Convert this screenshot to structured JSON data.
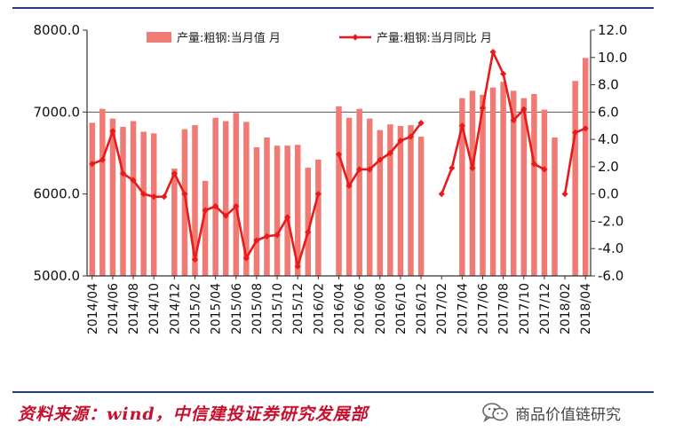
{
  "chart_data": {
    "type": "bar+line",
    "categories": [
      "2014/04",
      "2014/05",
      "2014/06",
      "2014/07",
      "2014/08",
      "2014/09",
      "2014/10",
      "2014/11",
      "2014/12",
      "2015/01",
      "2015/02",
      "2015/03",
      "2015/04",
      "2015/05",
      "2015/06",
      "2015/07",
      "2015/08",
      "2015/09",
      "2015/10",
      "2015/11",
      "2015/12",
      "2016/01",
      "2016/02",
      "2016/03",
      "2016/04",
      "2016/05",
      "2016/06",
      "2016/07",
      "2016/08",
      "2016/09",
      "2016/10",
      "2016/11",
      "2016/12",
      "2017/01",
      "2017/02",
      "2017/03",
      "2017/04",
      "2017/05",
      "2017/06",
      "2017/07",
      "2017/08",
      "2017/09",
      "2017/10",
      "2017/11",
      "2017/12",
      "2018/01",
      "2018/02",
      "2018/03",
      "2018/04"
    ],
    "x_tick_labels": [
      "2014/04",
      "2014/06",
      "2014/08",
      "2014/10",
      "2014/12",
      "2015/02",
      "2015/04",
      "2015/06",
      "2015/08",
      "2015/10",
      "2015/12",
      "2016/02",
      "2016/04",
      "2016/06",
      "2016/08",
      "2016/10",
      "2016/12",
      "2017/02",
      "2017/04",
      "2017/06",
      "2017/08",
      "2017/10",
      "2017/12",
      "2018/02",
      "2018/04"
    ],
    "series": [
      {
        "name": "产量:粗钢:当月值 月",
        "kind": "bar",
        "axis": "left",
        "color": "#ef7b74",
        "values": [
          6870,
          7040,
          6920,
          6820,
          6890,
          6760,
          6740,
          null,
          6310,
          6790,
          6840,
          6160,
          6930,
          6890,
          6990,
          6880,
          6570,
          6690,
          6590,
          6590,
          6600,
          6320,
          6420,
          null,
          7070,
          6930,
          7040,
          6920,
          6780,
          6850,
          6830,
          6840,
          6700,
          null,
          null,
          null,
          7170,
          7260,
          7210,
          7300,
          7370,
          7260,
          7170,
          7220,
          7030,
          6690,
          null,
          7380,
          7660
        ]
      },
      {
        "name": "产量:粗钢:当月同比 月",
        "kind": "line",
        "axis": "right",
        "color": "#e81a1a",
        "values": [
          2.2,
          2.5,
          4.6,
          1.5,
          1.0,
          0.0,
          -0.2,
          -0.2,
          1.5,
          0.0,
          -4.8,
          -1.2,
          -0.9,
          -1.6,
          -0.9,
          -4.7,
          -3.4,
          -3.1,
          -3.0,
          -1.7,
          -5.3,
          -2.8,
          0.0,
          null,
          2.9,
          0.6,
          1.8,
          1.8,
          2.5,
          3.0,
          3.9,
          4.2,
          5.2,
          null,
          0.0,
          1.9,
          5.0,
          1.9,
          6.3,
          10.4,
          8.8,
          5.4,
          6.2,
          2.2,
          1.8,
          null,
          0.0,
          4.5,
          4.8
        ]
      }
    ],
    "left_axis": {
      "min": 5000,
      "max": 8000,
      "step": 1000,
      "tick_labels": [
        "5000.0",
        "6000.0",
        "7000.0",
        "8000.0"
      ]
    },
    "right_axis": {
      "min": -6,
      "max": 12,
      "step": 2,
      "tick_labels": [
        "-6.0",
        "-4.0",
        "-2.0",
        "0.0",
        "2.0",
        "4.0",
        "6.0",
        "8.0",
        "10.0",
        "12.0"
      ]
    },
    "legend_placement": "top-center",
    "grid": "horizontal at 7000",
    "colors": {
      "frame": "#333333",
      "rule": "#1f3d86"
    }
  },
  "source": {
    "text": "资料来源：wind，中信建投证券研究发展部"
  },
  "watermark": {
    "icon": "wechat-icon",
    "text": "商品价值链研究"
  }
}
